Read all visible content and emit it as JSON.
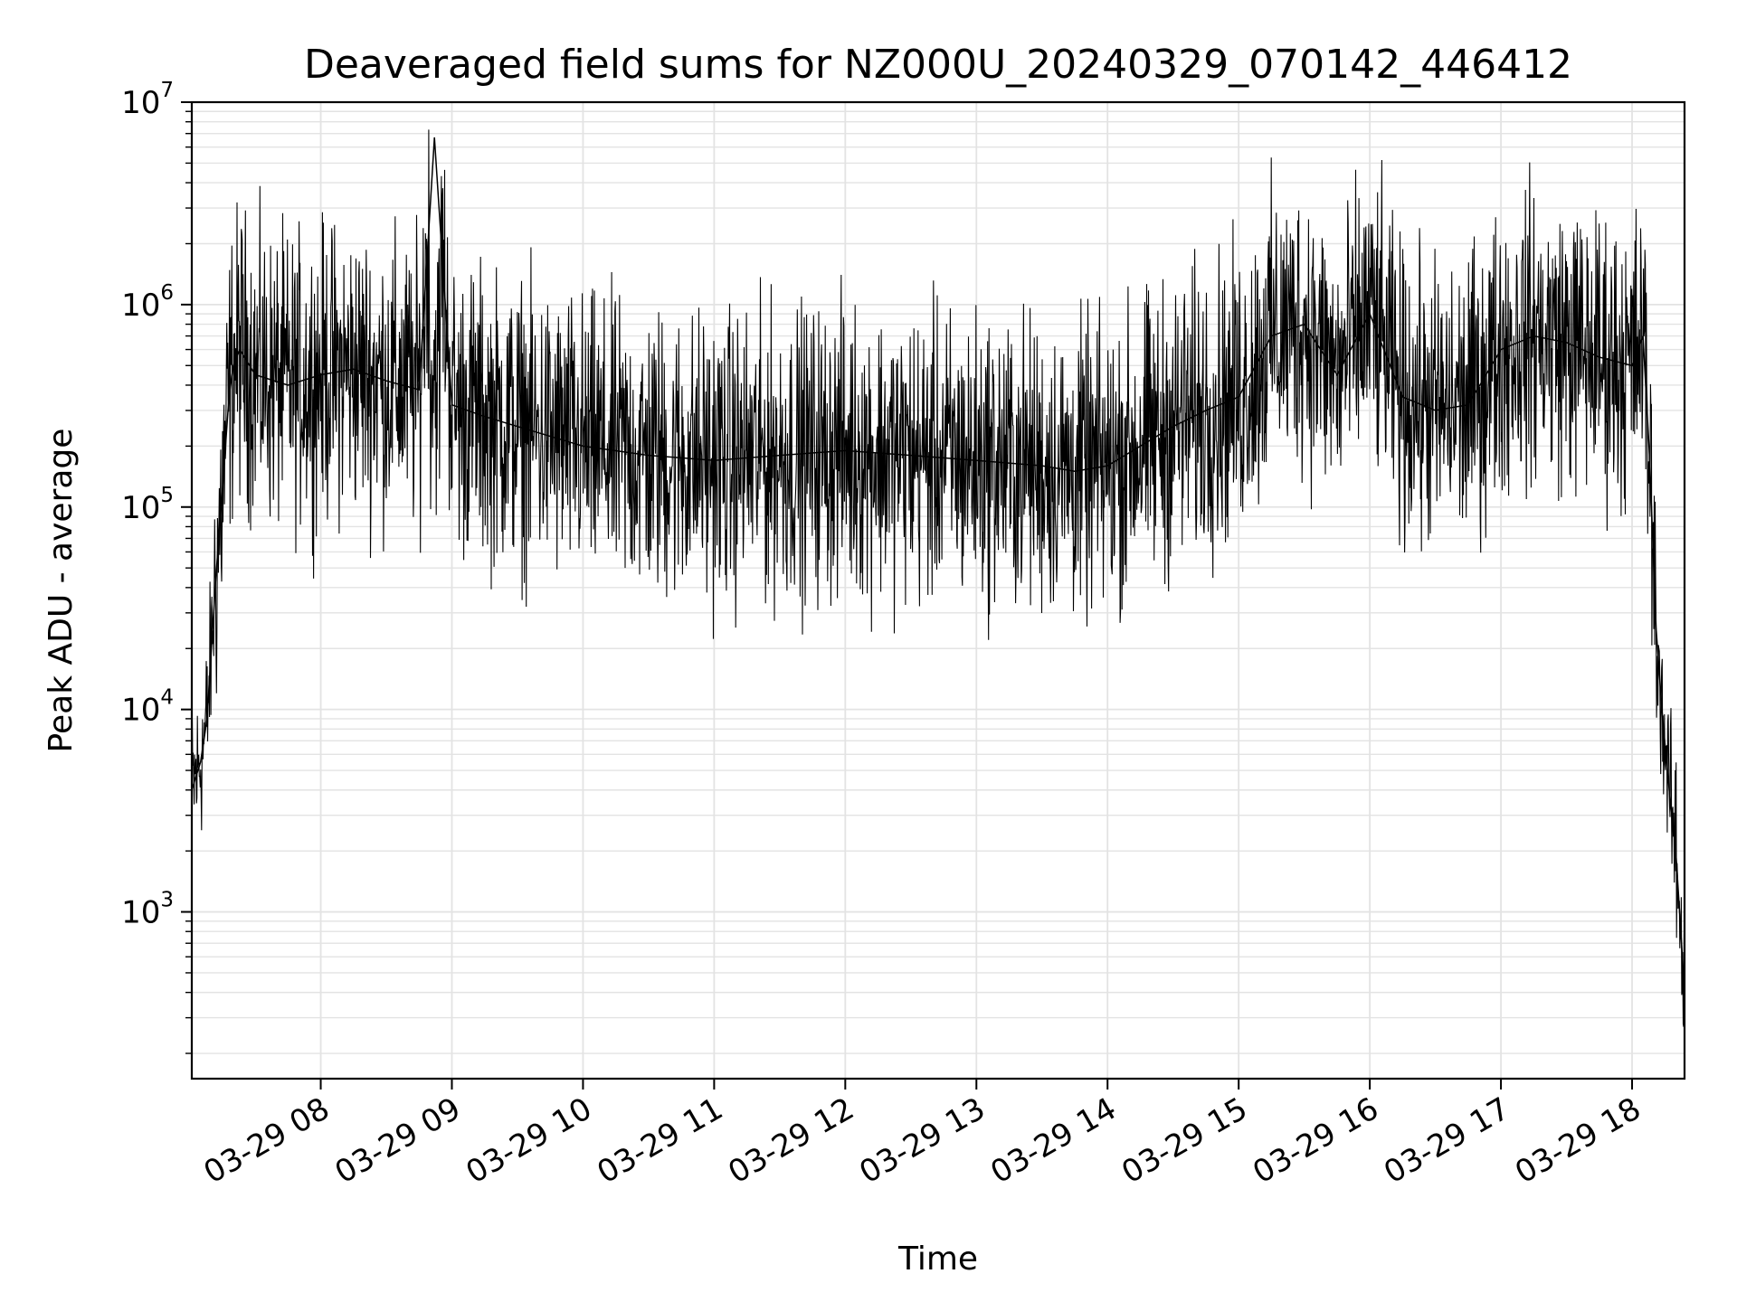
{
  "chart_data": {
    "type": "line",
    "title": "Deaveraged field sums for NZ000U_20240329_070142_446412",
    "xlabel": "Time",
    "ylabel": "Peak ADU - average",
    "y_scale": "log",
    "ylim": [
      150,
      10000000
    ],
    "xlim": [
      "2024-03-29 07:01",
      "2024-03-29 18:24"
    ],
    "x_ticks": [
      "2024-03-29 08:00",
      "2024-03-29 09:00",
      "2024-03-29 10:00",
      "2024-03-29 11:00",
      "2024-03-29 12:00",
      "2024-03-29 13:00",
      "2024-03-29 14:00",
      "2024-03-29 15:00",
      "2024-03-29 16:00",
      "2024-03-29 17:00",
      "2024-03-29 18:00"
    ],
    "x_tick_labels": [
      "03-29 08",
      "03-29 09",
      "03-29 10",
      "03-29 11",
      "03-29 12",
      "03-29 13",
      "03-29 14",
      "03-29 15",
      "03-29 16",
      "03-29 17",
      "03-29 18"
    ],
    "y_ticks": [
      1000,
      10000,
      100000,
      1000000,
      10000000
    ],
    "y_tick_labels": [
      {
        "base": "10",
        "exp": "3"
      },
      {
        "base": "10",
        "exp": "4"
      },
      {
        "base": "10",
        "exp": "5"
      },
      {
        "base": "10",
        "exp": "6"
      },
      {
        "base": "10",
        "exp": "7"
      }
    ],
    "grid": true,
    "series": [
      {
        "color": "#000000",
        "x": [
          "2024-03-29 07:01",
          "2024-03-29 07:05",
          "2024-03-29 07:08",
          "2024-03-29 07:10",
          "2024-03-29 07:12",
          "2024-03-29 07:15",
          "2024-03-29 07:18",
          "2024-03-29 07:20",
          "2024-03-29 07:23",
          "2024-03-29 07:30",
          "2024-03-29 07:45",
          "2024-03-29 08:00",
          "2024-03-29 08:15",
          "2024-03-29 08:30",
          "2024-03-29 08:45",
          "2024-03-29 08:52",
          "2024-03-29 09:00",
          "2024-03-29 09:15",
          "2024-03-29 09:30",
          "2024-03-29 10:00",
          "2024-03-29 10:30",
          "2024-03-29 11:00",
          "2024-03-29 11:30",
          "2024-03-29 12:00",
          "2024-03-29 12:30",
          "2024-03-29 13:00",
          "2024-03-29 13:30",
          "2024-03-29 13:45",
          "2024-03-29 14:00",
          "2024-03-29 14:30",
          "2024-03-29 14:45",
          "2024-03-29 15:00",
          "2024-03-29 15:15",
          "2024-03-29 15:30",
          "2024-03-29 15:45",
          "2024-03-29 16:00",
          "2024-03-29 16:15",
          "2024-03-29 16:30",
          "2024-03-29 16:45",
          "2024-03-29 17:00",
          "2024-03-29 17:15",
          "2024-03-29 17:30",
          "2024-03-29 17:45",
          "2024-03-29 18:00",
          "2024-03-29 18:05",
          "2024-03-29 18:08",
          "2024-03-29 18:11",
          "2024-03-29 18:14",
          "2024-03-29 18:17",
          "2024-03-29 18:20",
          "2024-03-29 18:22",
          "2024-03-29 18:24"
        ],
        "y": [
          4000,
          5500,
          9000,
          20000,
          45000,
          120000,
          350000,
          500000,
          600000,
          450000,
          400000,
          450000,
          480000,
          420000,
          380000,
          6700000,
          320000,
          280000,
          250000,
          200000,
          180000,
          170000,
          180000,
          190000,
          180000,
          170000,
          160000,
          150000,
          160000,
          250000,
          300000,
          350000,
          700000,
          800000,
          450000,
          900000,
          350000,
          300000,
          320000,
          600000,
          700000,
          650000,
          550000,
          500000,
          700000,
          180000,
          25000,
          9000,
          4000,
          2000,
          900,
          400
        ]
      }
    ]
  }
}
